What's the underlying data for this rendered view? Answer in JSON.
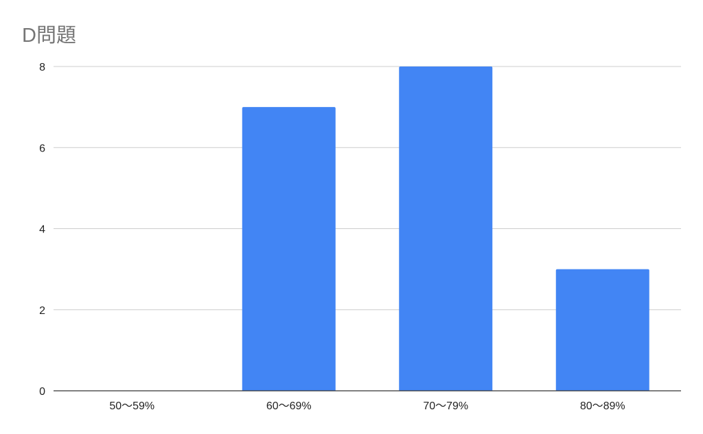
{
  "chart_data": {
    "type": "bar",
    "title": "D問題",
    "categories": [
      "50〜59%",
      "60〜69%",
      "70〜79%",
      "80〜89%"
    ],
    "values": [
      0,
      7,
      8,
      3
    ],
    "xlabel": "",
    "ylabel": "",
    "ylim": [
      0,
      8
    ],
    "yticks": [
      0,
      2,
      4,
      6,
      8
    ],
    "grid": true,
    "bar_color": "#4285f4"
  }
}
